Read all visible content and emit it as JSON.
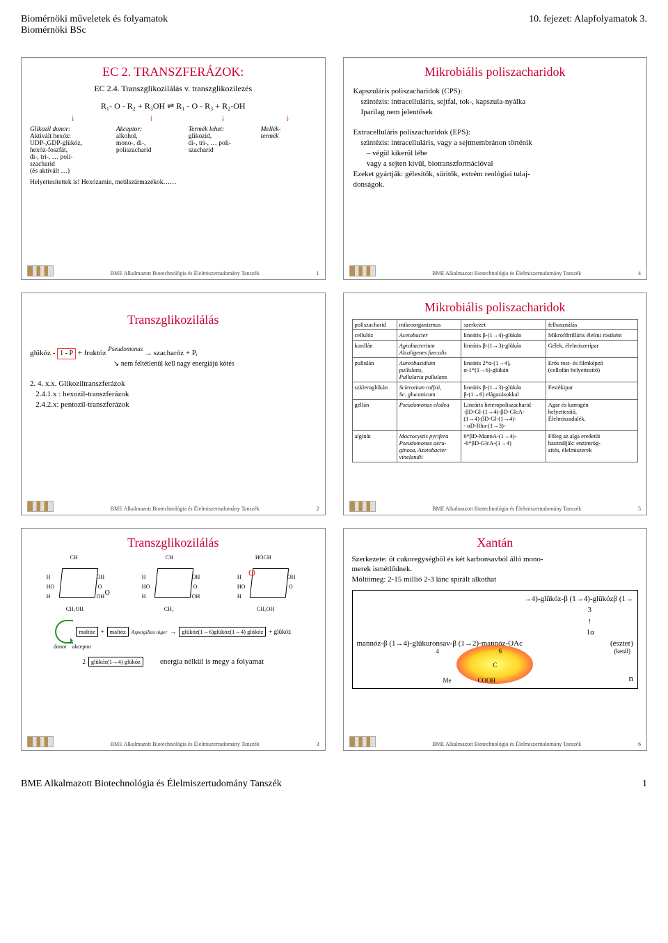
{
  "header": {
    "left1": "Biomérnöki műveletek és folyamatok",
    "left2": "Biomérnöki BSc",
    "right": "10. fejezet: Alapfolyamatok 3."
  },
  "footer": {
    "dept": "BME Alkalmazott Biotechnológia és Élelmiszertudomány Tanszék",
    "page": "1"
  },
  "slide1": {
    "title": "EC 2. TRANSZFERÁZOK:",
    "subtitle": "EC 2.4. Transzglikozilálás v. transzglikozilezés",
    "equation": "R₁- O - R₂   +   R₃OH   ⇌   R₁ - O - R₃  +  R₂-OH",
    "col1h": "Glikozil donor:",
    "col1b": "Aktivált hexóz:\nUDP-,GDP-glükóz,\nhexóz-foszfát,\ndi-, tri-, … poli-\nszacharid\n(és aktivált …)",
    "col2h": "Akceptor:",
    "col2b": "alkohol,\nmono-, di-,\npoliszacharid",
    "col3h": "Termék lehet:",
    "col3b": "glikozid,\ndi-, tri-, … poli-\nszacharid",
    "col4h": "Mellék-\ntermék",
    "note": "Helyettesítettek is! Hexózamin, metilszármazékok……",
    "foot": "BME Alkalmazott Biotechnológia és Élelmiszertudomány Tanszék",
    "num": "1"
  },
  "slide2": {
    "title": "Transzglikozilálás",
    "line1a": "glükóz -",
    "box": "1 - P",
    "line1b": " + fruktóz ",
    "pseudo": "Pseudomonas",
    "line1c": "  szacharóz + Pᵢ",
    "line2": "nem feltétlenül kell nagy energiájú kötés",
    "line3": "2. 4. x.x.   Glikoziltranszferázok",
    "line4": "   2.4.1.x : hexozil-transzferázok",
    "line5": "   2.4.2.x: pentozil-transzferázok",
    "foot": "BME Alkalmazott Biotechnológia és Élelmiszertudomány Tanszék",
    "num": "2"
  },
  "slide3": {
    "title": "Transzglikozilálás",
    "m1top": "CH",
    "m2top": "CH",
    "m3top": "HOCH",
    "m_h": "H",
    "m_oh": "OH",
    "m_ho": "HO",
    "m_o": "O",
    "m_ch2oh": "CH₂OH",
    "m_ch2": "CH₂",
    "r1a": "maltóz",
    "r1b": "maltóz",
    "asp": "Aspergillus niger",
    "r2": "glükóz(1→6)glükóz(1→4) glükóz",
    "r3": "+ glükóz",
    "donor": "donor",
    "akceptor": "akceptor",
    "row2a": "2",
    "row2b": "glükóz(1→4) glükóz",
    "row2c": "energia nélkül is megy a folyamat",
    "foot": "BME Alkalmazott Biotechnológia és Élelmiszertudomány Tanszék",
    "num": "3"
  },
  "slide4": {
    "title": "Mikrobiális poliszacharidok",
    "p1": "Kapszuláris poliszacharidok (CPS):",
    "p1a": "    szintézis: intracelluláris, sejtfal, tok-, kapszula-nyálka",
    "p1b": "    Iparilag nem jelentősek",
    "p2": "Extracelluláris poliszacharidok (EPS):",
    "p2a": "    szintézis: intracelluláris, vagy a sejtmembránon történik",
    "p2b": "       – végül kikerül lébe",
    "p2c": "       vagy a sejten kívül, biotranszformációval",
    "p2d": "    Ezeket gyártják: gélesítők, sűrítők, extrém reológiai tulaj-\n    donságok.",
    "foot": "BME Alkalmazott Biotechnológia és Élelmiszertudomány Tanszék",
    "num": "4"
  },
  "slide5": {
    "title": "Mikrobiális poliszacharidok",
    "headers": [
      "poliszacharid",
      "mikroorganizmus",
      "szerkezet",
      "felhasználás"
    ],
    "rows": [
      [
        "cellulóz",
        "Acetobacter",
        "lineáris β-(1→4)-glükán",
        "Mikrofibrilláris élelmi rostként"
      ],
      [
        "kurdlán",
        "Agrobacterium\nAlcaligenes faecalis",
        "lineáris β-(1→3)-glükán",
        "Gélek, élelmiszeripar"
      ],
      [
        "pullulán",
        "Aureobasidium\npullulans,\nPullularia pullulans",
        "lineáris 2*α-(1→4),\n        α-1*(1→6)-glükán",
        "Erős rost- és filmképző\n(cellofán helyettesítő)"
      ],
      [
        "szkleroglükán",
        "Sclerotium rolfsii,\nSc. glucanicum",
        "lineáris β-(1→3)-glükán\nβ-(1→6) elágazásokkal",
        "Festékipar"
      ],
      [
        "gellán",
        "Pseudomonas elodea",
        "Lineáris heteropoliszacharid\n-βD-Gl-(1→4)-βD-GlcA-\n(1→4)-βD-Gl-(1→4)-\n   - αD-Rha-(1→3)-",
        "Agar és karragén\nhelyettesítő,\nÉlelmiszadalék."
      ],
      [
        "alginát",
        "Macrocystis pyrifera\nPseudomonas aeru-\nginosa, Azotobacter\nvinelandii",
        "6*βD-MannA-(1→4)-\n        -6*βD-GlcA-(1→4)",
        "Főleg az alga eredetűt\nhasználják: enzimrög-\nzítés, élelmiszerek"
      ]
    ],
    "foot": "BME Alkalmazott Biotechnológia és Élelmiszertudomány Tanszék",
    "num": "5"
  },
  "slide6": {
    "title": "Xantán",
    "p1": "Szerkezete: öt cukoregységből és két karbonsavból álló mono-\nmerek ismétlődnek.",
    "p2": "Móltömeg: 2-15 millió     2-3 lánc spirált alkothat",
    "l1": "→4)-glükóz-β (1→4)-glükózβ (1→",
    "l2": "3",
    "l3": "↑",
    "l4": "1α",
    "l5": "mannóz-β (1→4)-glükuronsav-β (1→2)-mannóz-OAc",
    "l5r": "(észter)",
    "l6a": "4",
    "l6b": "6",
    "l6c": "(ketál)",
    "l7": "C",
    "l8a": "Me",
    "l8b": "COOH",
    "nbr": "n",
    "foot": "BME Alkalmazott Biotechnológia és Élelmiszertudomány Tanszék",
    "num": "6"
  },
  "colors": {
    "title": "#cc0033",
    "border": "#888888"
  }
}
